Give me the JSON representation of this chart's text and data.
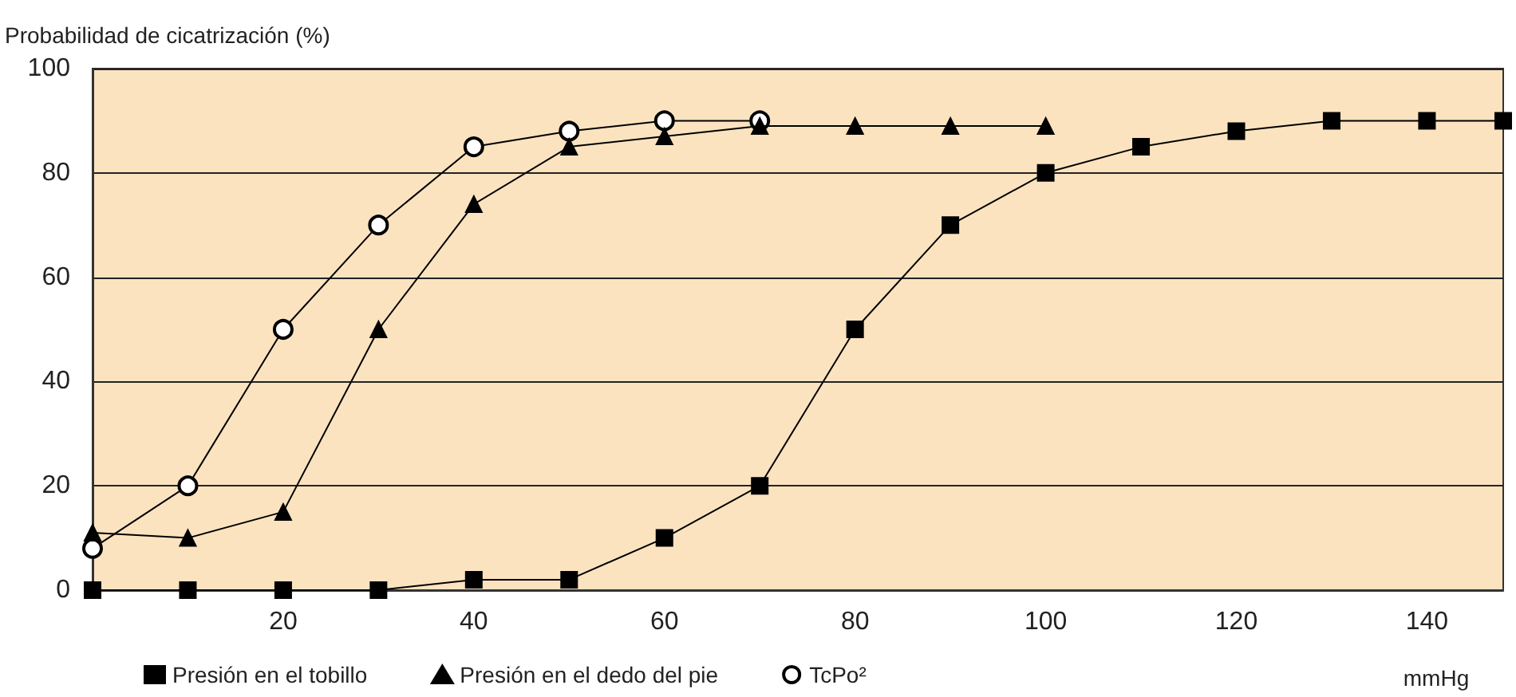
{
  "chart_data": {
    "type": "line",
    "ylabel": "Probabilidad de cicatrización (%)",
    "xlabel": "mmHg",
    "x": [
      0,
      10,
      20,
      30,
      40,
      50,
      60,
      70,
      80,
      90,
      100,
      110,
      120,
      130,
      140,
      148
    ],
    "series": [
      {
        "name": "Presión en el tobillo",
        "color": "#000000",
        "marker": "square",
        "values": [
          0,
          0,
          0,
          0,
          2,
          2,
          10,
          20,
          50,
          70,
          80,
          85,
          88,
          90,
          90,
          90
        ]
      },
      {
        "name": "Presión en el dedo del pie",
        "color": "#000000",
        "marker": "triangle",
        "values": [
          11,
          10,
          15,
          50,
          74,
          85,
          87,
          89,
          89,
          89,
          89,
          null,
          null,
          null,
          null,
          null
        ]
      },
      {
        "name": "TcPo²",
        "color": "#000000",
        "marker": "circle",
        "values": [
          8,
          20,
          50,
          70,
          85,
          88,
          90,
          90,
          null,
          null,
          null,
          null,
          null,
          null,
          null,
          null
        ]
      }
    ],
    "xlim": [
      0,
      148
    ],
    "xticks": [
      20,
      40,
      60,
      80,
      100,
      120,
      140
    ],
    "ylim": [
      0,
      100
    ],
    "yticks": [
      0,
      20,
      40,
      60,
      80,
      100
    ],
    "grid": "y",
    "legend": "bottom left",
    "line_style": "solid"
  }
}
